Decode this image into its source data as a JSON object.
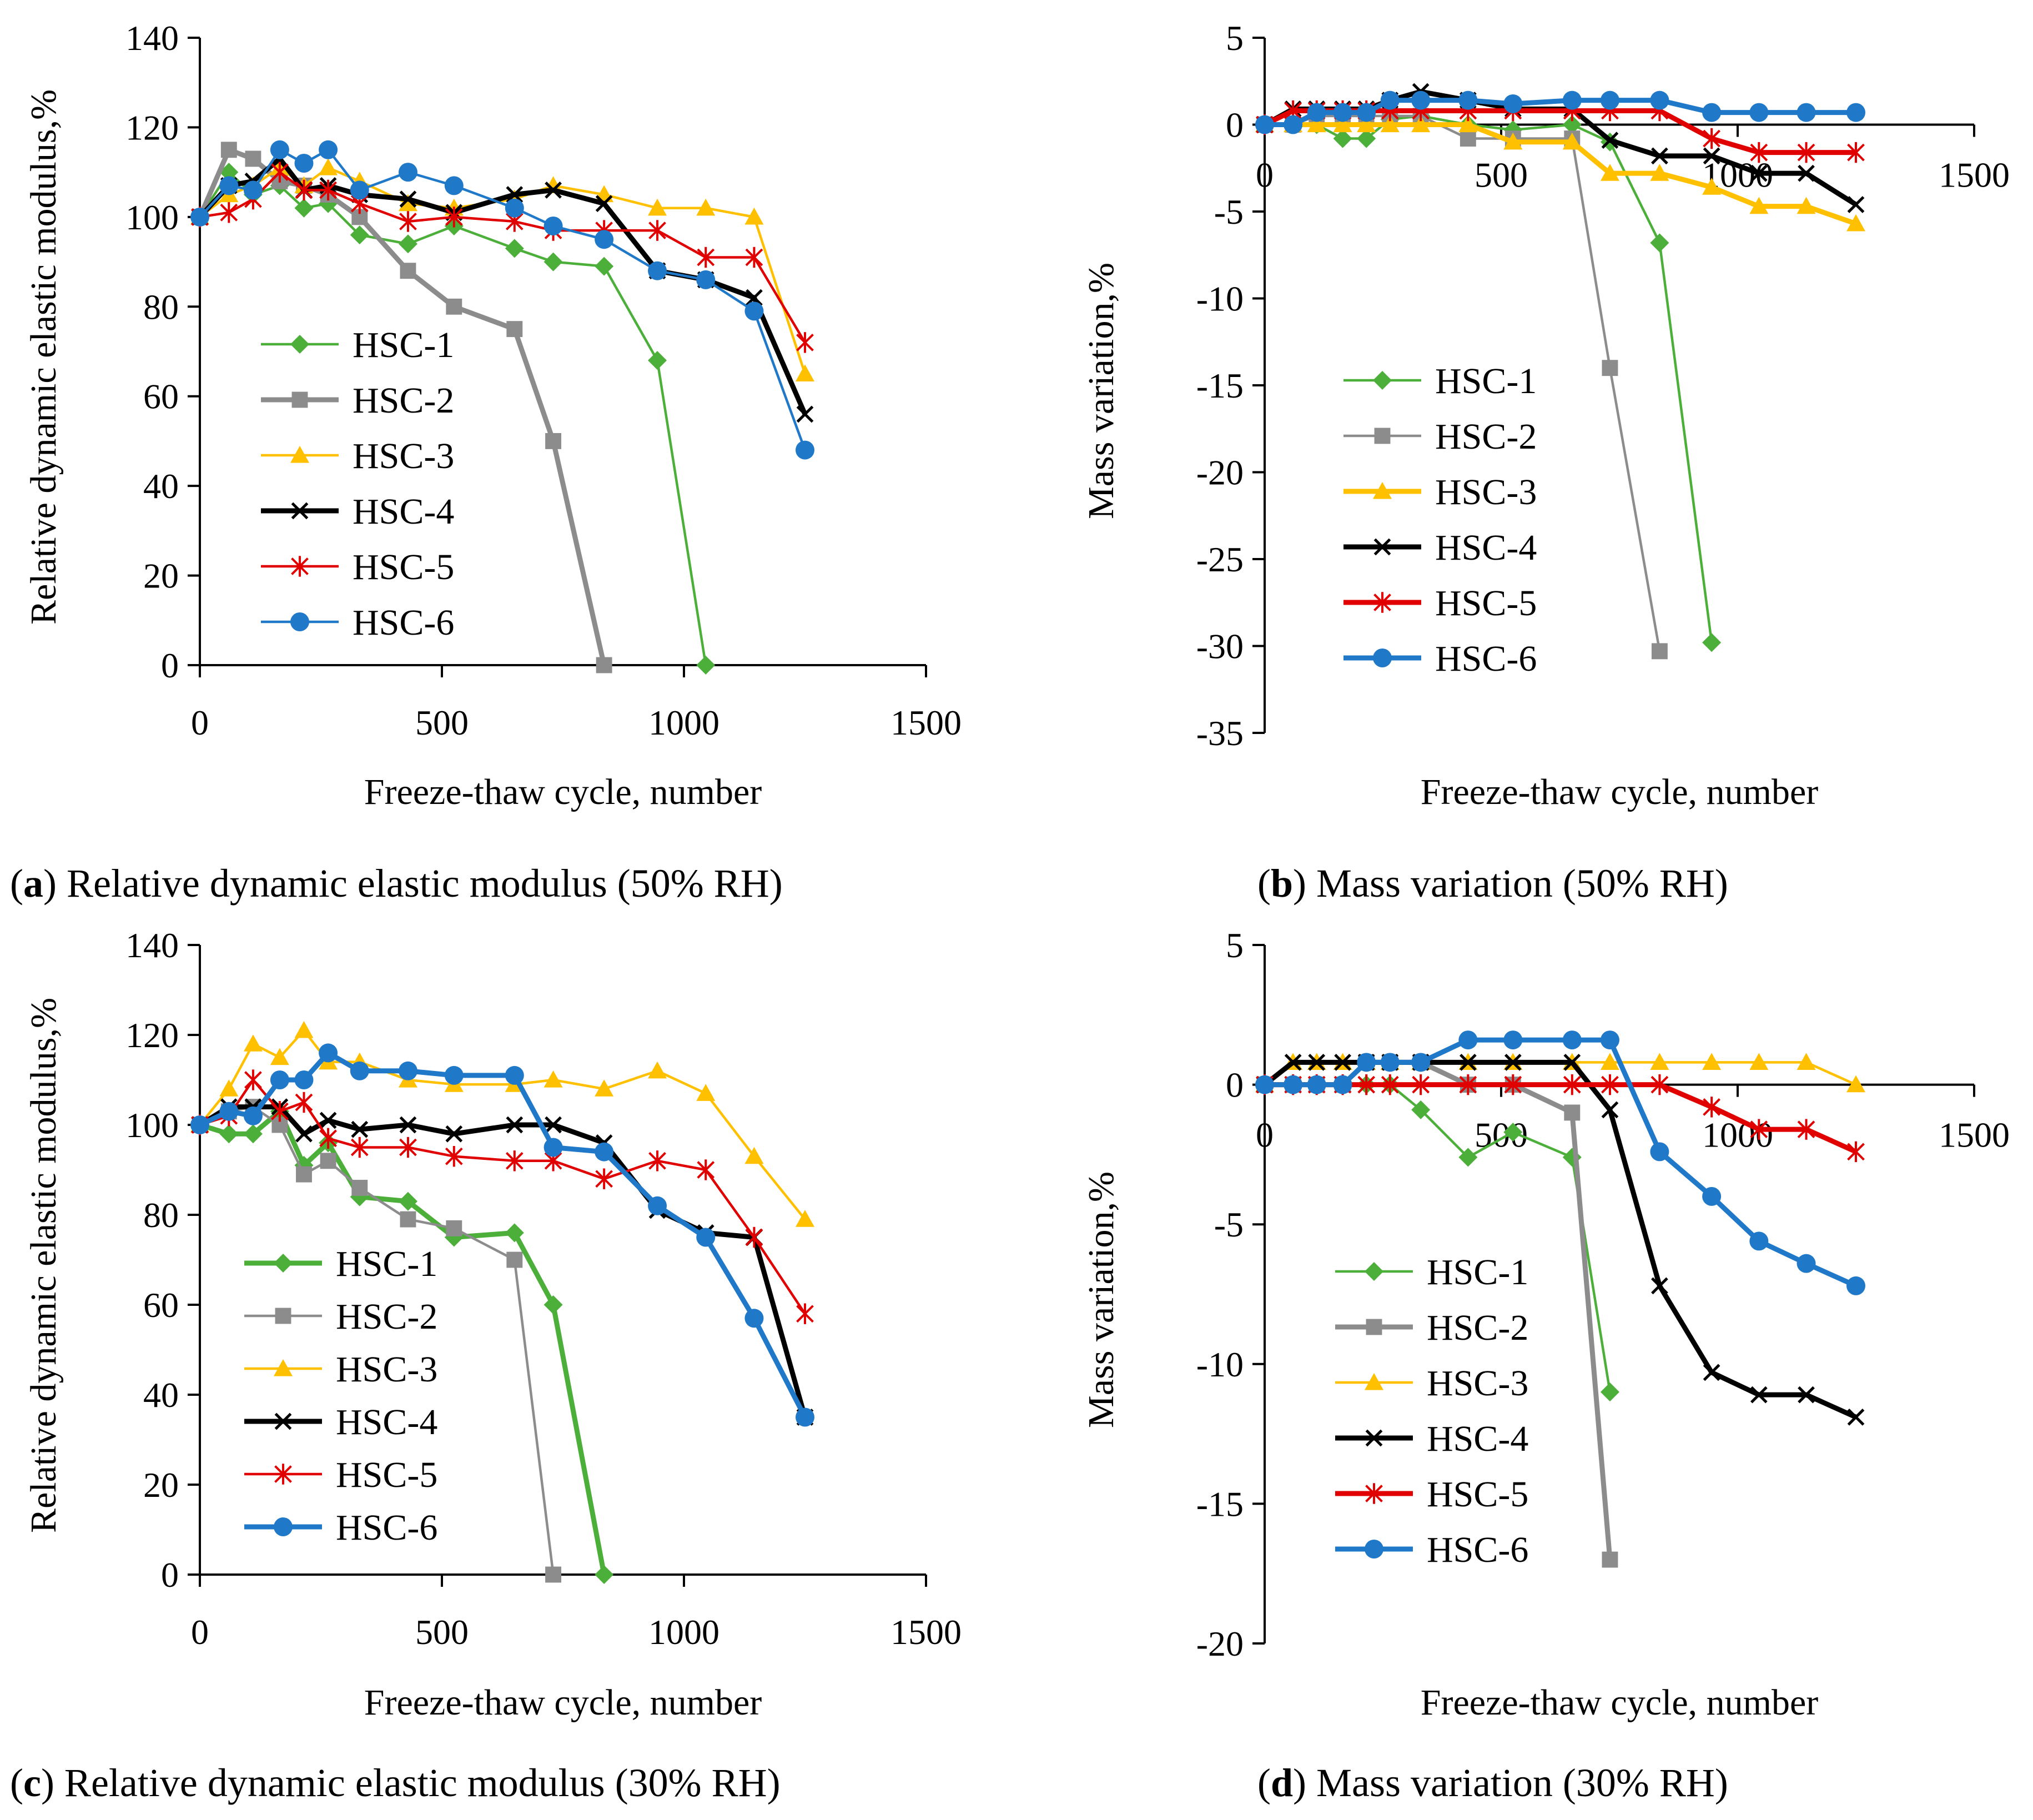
{
  "figure": {
    "series_colors": {
      "HSC-1": "#4caf3a",
      "HSC-2": "#8c8c8c",
      "HSC-3": "#ffc000",
      "HSC-4": "#000000",
      "HSC-5": "#e00000",
      "HSC-6": "#1f78c8"
    },
    "series_markers": {
      "HSC-1": "diamond",
      "HSC-2": "square",
      "HSC-3": "triangle",
      "HSC-4": "x",
      "HSC-5": "star",
      "HSC-6": "circle"
    }
  },
  "chart_data": [
    {
      "id": "a",
      "type": "line",
      "caption_letter": "a",
      "caption_text": " Relative dynamic elastic modulus (50% RH)",
      "xlabel": "Freeze-thaw cycle, number",
      "ylabel": "Relative dynamic elastic modulus,%",
      "xlim": [
        0,
        1500
      ],
      "ylim": [
        0,
        140
      ],
      "xticks": [
        0,
        500,
        1000,
        1500
      ],
      "yticks": [
        0,
        20,
        40,
        60,
        80,
        100,
        120,
        140
      ],
      "legend_position": "left-middle",
      "series": [
        {
          "name": "HSC-1",
          "x": [
            0,
            60,
            110,
            165,
            215,
            265,
            330,
            430,
            525,
            650,
            730,
            835,
            945,
            1045
          ],
          "y": [
            100,
            110,
            105,
            107,
            102,
            103,
            96,
            94,
            98,
            93,
            90,
            89,
            68,
            0
          ]
        },
        {
          "name": "HSC-2",
          "x": [
            0,
            60,
            110,
            165,
            215,
            265,
            330,
            430,
            525,
            650,
            730,
            835
          ],
          "y": [
            100,
            115,
            113,
            108,
            107,
            105,
            100,
            88,
            80,
            75,
            50,
            0
          ]
        },
        {
          "name": "HSC-3",
          "x": [
            0,
            60,
            110,
            165,
            215,
            265,
            330,
            430,
            525,
            650,
            730,
            835,
            945,
            1045,
            1145,
            1250
          ],
          "y": [
            100,
            105,
            107,
            111,
            107,
            111,
            108,
            103,
            102,
            104,
            107,
            105,
            102,
            102,
            100,
            65
          ]
        },
        {
          "name": "HSC-4",
          "x": [
            0,
            60,
            110,
            165,
            215,
            265,
            330,
            430,
            525,
            650,
            730,
            835,
            945,
            1045,
            1145,
            1250
          ],
          "y": [
            100,
            107,
            108,
            113,
            106,
            107,
            105,
            104,
            101,
            105,
            106,
            103,
            88,
            86,
            82,
            56
          ]
        },
        {
          "name": "HSC-5",
          "x": [
            0,
            60,
            110,
            165,
            215,
            265,
            330,
            430,
            525,
            650,
            730,
            835,
            945,
            1045,
            1145,
            1250
          ],
          "y": [
            100,
            101,
            104,
            110,
            106,
            106,
            103,
            99,
            100,
            99,
            97,
            97,
            97,
            91,
            91,
            72
          ]
        },
        {
          "name": "HSC-6",
          "x": [
            0,
            60,
            110,
            165,
            215,
            265,
            330,
            430,
            525,
            650,
            730,
            835,
            945,
            1045,
            1145,
            1250
          ],
          "y": [
            100,
            107,
            106,
            115,
            112,
            115,
            106,
            110,
            107,
            102,
            98,
            95,
            88,
            86,
            79,
            48
          ]
        }
      ]
    },
    {
      "id": "b",
      "type": "line",
      "caption_letter": "b",
      "caption_text": " Mass variation (50% RH)",
      "xlabel": "Freeze-thaw cycle, number",
      "ylabel": "Mass variation,%",
      "xlim": [
        0,
        1500
      ],
      "ylim": [
        -35,
        5
      ],
      "xticks": [
        0,
        500,
        1000,
        1500
      ],
      "yticks": [
        -35,
        -30,
        -25,
        -20,
        -15,
        -10,
        -5,
        0,
        5
      ],
      "legend_position": "left-bottom",
      "series": [
        {
          "name": "HSC-1",
          "x": [
            0,
            60,
            110,
            165,
            215,
            265,
            330,
            430,
            525,
            650,
            730,
            835,
            945
          ],
          "y": [
            0,
            0,
            0,
            -0.8,
            -0.8,
            0.3,
            0.5,
            0,
            -0.3,
            0,
            -1,
            -6.8,
            -29.8
          ]
        },
        {
          "name": "HSC-2",
          "x": [
            0,
            60,
            110,
            165,
            215,
            265,
            330,
            430,
            525,
            650,
            730,
            835
          ],
          "y": [
            0,
            0,
            0.5,
            0.5,
            0.5,
            0.5,
            0.5,
            -0.8,
            -0.8,
            -0.8,
            -14,
            -30.3
          ]
        },
        {
          "name": "HSC-3",
          "x": [
            0,
            60,
            110,
            165,
            215,
            265,
            330,
            430,
            525,
            650,
            730,
            835,
            945,
            1045,
            1145,
            1250
          ],
          "y": [
            0,
            0,
            0,
            0,
            0,
            0,
            0,
            0,
            -1,
            -1,
            -2.8,
            -2.8,
            -3.6,
            -4.7,
            -4.7,
            -5.7
          ]
        },
        {
          "name": "HSC-4",
          "x": [
            0,
            60,
            110,
            165,
            215,
            265,
            330,
            430,
            525,
            650,
            730,
            835,
            945,
            1045,
            1145,
            1250
          ],
          "y": [
            0,
            0.9,
            0.9,
            0.9,
            0.9,
            1.4,
            1.9,
            1.4,
            0.9,
            0.9,
            -0.9,
            -1.8,
            -1.8,
            -2.8,
            -2.8,
            -4.6
          ]
        },
        {
          "name": "HSC-5",
          "x": [
            0,
            60,
            110,
            165,
            215,
            265,
            330,
            430,
            525,
            650,
            730,
            835,
            945,
            1045,
            1145,
            1250
          ],
          "y": [
            0,
            0.8,
            0.8,
            0.8,
            0.8,
            0.8,
            0.8,
            0.8,
            0.8,
            0.8,
            0.8,
            0.8,
            -0.8,
            -1.6,
            -1.6,
            -1.6
          ]
        },
        {
          "name": "HSC-6",
          "x": [
            0,
            60,
            110,
            165,
            215,
            265,
            330,
            430,
            525,
            650,
            730,
            835,
            945,
            1045,
            1145,
            1250
          ],
          "y": [
            0,
            0,
            0.7,
            0.7,
            0.7,
            1.4,
            1.4,
            1.4,
            1.2,
            1.4,
            1.4,
            1.4,
            0.7,
            0.7,
            0.7,
            0.7
          ]
        }
      ]
    },
    {
      "id": "c",
      "type": "line",
      "caption_letter": "c",
      "caption_text": " Relative dynamic elastic modulus (30% RH)",
      "xlabel": "Freeze-thaw cycle, number",
      "ylabel": "Relative dynamic elastic modulus,%",
      "xlim": [
        0,
        1500
      ],
      "ylim": [
        0,
        140
      ],
      "xticks": [
        0,
        500,
        1000,
        1500
      ],
      "yticks": [
        0,
        20,
        40,
        60,
        80,
        100,
        120,
        140
      ],
      "legend_position": "left-bottom",
      "series": [
        {
          "name": "HSC-1",
          "x": [
            0,
            60,
            110,
            165,
            215,
            265,
            330,
            430,
            525,
            650,
            730,
            835
          ],
          "y": [
            100,
            98,
            98,
            103,
            91,
            96,
            84,
            83,
            75,
            76,
            60,
            0
          ]
        },
        {
          "name": "HSC-2",
          "x": [
            0,
            60,
            110,
            165,
            215,
            265,
            330,
            430,
            525,
            650,
            730
          ],
          "y": [
            100,
            103,
            104,
            100,
            89,
            92,
            86,
            79,
            77,
            70,
            0
          ]
        },
        {
          "name": "HSC-3",
          "x": [
            0,
            60,
            110,
            165,
            215,
            265,
            330,
            430,
            525,
            650,
            730,
            835,
            945,
            1045,
            1145,
            1250
          ],
          "y": [
            100,
            108,
            118,
            115,
            121,
            114,
            114,
            110,
            109,
            109,
            110,
            108,
            112,
            107,
            93,
            79
          ]
        },
        {
          "name": "HSC-4",
          "x": [
            0,
            60,
            110,
            165,
            215,
            265,
            330,
            430,
            525,
            650,
            730,
            835,
            945,
            1045,
            1145,
            1250
          ],
          "y": [
            100,
            104,
            104,
            104,
            98,
            101,
            99,
            100,
            98,
            100,
            100,
            96,
            81,
            76,
            75,
            35
          ]
        },
        {
          "name": "HSC-5",
          "x": [
            0,
            60,
            110,
            165,
            215,
            265,
            330,
            430,
            525,
            650,
            730,
            835,
            945,
            1045,
            1145,
            1250
          ],
          "y": [
            100,
            102,
            110,
            103,
            105,
            97,
            95,
            95,
            93,
            92,
            92,
            88,
            92,
            90,
            75,
            58
          ]
        },
        {
          "name": "HSC-6",
          "x": [
            0,
            60,
            110,
            165,
            215,
            265,
            330,
            430,
            525,
            650,
            730,
            835,
            945,
            1045,
            1145,
            1250
          ],
          "y": [
            100,
            103,
            102,
            110,
            110,
            116,
            112,
            112,
            111,
            111,
            95,
            94,
            82,
            75,
            57,
            35
          ]
        }
      ]
    },
    {
      "id": "d",
      "type": "line",
      "caption_letter": "d",
      "caption_text": " Mass variation (30% RH)",
      "xlabel": "Freeze-thaw cycle, number",
      "ylabel": "Mass variation,%",
      "xlim": [
        0,
        1500
      ],
      "ylim": [
        -20,
        5
      ],
      "xticks": [
        0,
        500,
        1000,
        1500
      ],
      "yticks": [
        -20,
        -15,
        -10,
        -5,
        0,
        5
      ],
      "legend_position": "left-bottom",
      "series": [
        {
          "name": "HSC-1",
          "x": [
            0,
            60,
            110,
            165,
            215,
            265,
            330,
            430,
            525,
            650,
            730
          ],
          "y": [
            0,
            0,
            0,
            0,
            0,
            0,
            -0.9,
            -2.6,
            -1.7,
            -2.6,
            -11
          ]
        },
        {
          "name": "HSC-2",
          "x": [
            0,
            60,
            110,
            165,
            215,
            265,
            330,
            430,
            525,
            650,
            730
          ],
          "y": [
            0,
            0,
            0,
            0,
            0.8,
            0.8,
            0.8,
            0,
            0,
            -1,
            -17
          ]
        },
        {
          "name": "HSC-3",
          "x": [
            0,
            60,
            110,
            165,
            215,
            265,
            330,
            430,
            525,
            650,
            730,
            835,
            945,
            1045,
            1145,
            1250
          ],
          "y": [
            0,
            0.8,
            0.8,
            0.8,
            0.8,
            0.8,
            0.8,
            0.8,
            0.8,
            0.8,
            0.8,
            0.8,
            0.8,
            0.8,
            0.8,
            0
          ]
        },
        {
          "name": "HSC-4",
          "x": [
            0,
            60,
            110,
            165,
            215,
            265,
            330,
            430,
            525,
            650,
            730,
            835,
            945,
            1045,
            1145,
            1250
          ],
          "y": [
            0,
            0.8,
            0.8,
            0.8,
            0.8,
            0.8,
            0.8,
            0.8,
            0.8,
            0.8,
            -0.9,
            -7.2,
            -10.3,
            -11.1,
            -11.1,
            -11.9
          ]
        },
        {
          "name": "HSC-5",
          "x": [
            0,
            60,
            110,
            165,
            215,
            265,
            330,
            430,
            525,
            650,
            730,
            835,
            945,
            1045,
            1145,
            1250
          ],
          "y": [
            0,
            0,
            0,
            0,
            0,
            0,
            0,
            0,
            0,
            0,
            0,
            0,
            -0.8,
            -1.6,
            -1.6,
            -2.4
          ]
        },
        {
          "name": "HSC-6",
          "x": [
            0,
            60,
            110,
            165,
            215,
            265,
            330,
            430,
            525,
            650,
            730,
            835,
            945,
            1045,
            1145,
            1250
          ],
          "y": [
            0,
            0,
            0,
            0,
            0.8,
            0.8,
            0.8,
            1.6,
            1.6,
            1.6,
            1.6,
            -2.4,
            -4,
            -5.6,
            -6.4,
            -7.2
          ]
        }
      ]
    }
  ]
}
